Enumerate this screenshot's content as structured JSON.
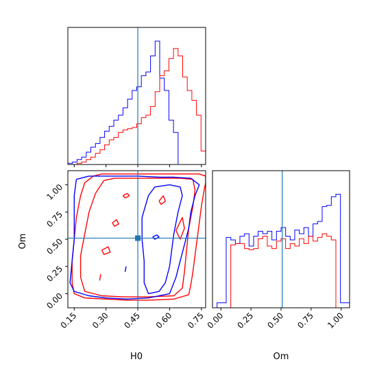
{
  "chart_data": {
    "type": "corner",
    "parameters": [
      "H0",
      "Om"
    ],
    "truth": {
      "H0": 0.45,
      "Om": 0.51
    },
    "colors": {
      "series_a": "#0000ff",
      "series_b": "#ff0000",
      "truth": "#1f77b4"
    },
    "h0_hist": {
      "type": "histogram",
      "xlim": [
        0.12,
        0.77
      ],
      "bin_edges": [
        0.12,
        0.1417,
        0.1633,
        0.185,
        0.2067,
        0.2283,
        0.25,
        0.2717,
        0.2933,
        0.315,
        0.3367,
        0.3583,
        0.38,
        0.4017,
        0.4233,
        0.445,
        0.4667,
        0.4883,
        0.51,
        0.5317,
        0.5533,
        0.575,
        0.5967,
        0.6183,
        0.64,
        0.6617,
        0.6833,
        0.705,
        0.7267,
        0.7483,
        0.77
      ],
      "series": [
        {
          "color_key": "series_a",
          "counts": [
            0.01,
            0.02,
            0.04,
            0.06,
            0.1,
            0.14,
            0.17,
            0.22,
            0.27,
            0.31,
            0.36,
            0.4,
            0.46,
            0.53,
            0.6,
            0.63,
            0.72,
            0.75,
            0.88,
            1.0,
            0.7,
            0.6,
            0.36,
            0.26,
            0,
            0,
            0,
            0,
            0,
            0
          ]
        },
        {
          "color_key": "series_b",
          "counts": [
            0,
            0,
            0.01,
            0.02,
            0.04,
            0.06,
            0.09,
            0.12,
            0.16,
            0.2,
            0.22,
            0.26,
            0.28,
            0.29,
            0.3,
            0.33,
            0.38,
            0.4,
            0.47,
            0.59,
            0.72,
            0.76,
            0.86,
            0.94,
            0.88,
            0.71,
            0.6,
            0.52,
            0.4,
            0.11
          ]
        }
      ]
    },
    "om_hist": {
      "type": "histogram",
      "xlim": [
        -0.07,
        1.07
      ],
      "bin_edges": [
        -0.07,
        -0.032,
        0.006,
        0.044,
        0.082,
        0.12,
        0.158,
        0.196,
        0.234,
        0.272,
        0.31,
        0.348,
        0.386,
        0.424,
        0.462,
        0.5,
        0.538,
        0.576,
        0.614,
        0.652,
        0.69,
        0.728,
        0.766,
        0.804,
        0.842,
        0.88,
        0.918,
        0.956,
        0.994,
        1.032,
        1.07
      ],
      "series": [
        {
          "color_key": "series_a",
          "counts": [
            0,
            0.04,
            0.04,
            0.57,
            0.55,
            0.52,
            0.58,
            0.6,
            0.5,
            0.58,
            0.62,
            0.6,
            0.62,
            0.55,
            0.62,
            0.65,
            0.58,
            0.55,
            0.63,
            0.6,
            0.65,
            0.58,
            0.68,
            0.7,
            0.82,
            0.83,
            0.9,
            0.92,
            0.04,
            0.04
          ]
        },
        {
          "color_key": "series_b",
          "counts": [
            0,
            0,
            0,
            0,
            0.51,
            0.52,
            0.52,
            0.48,
            0.47,
            0.48,
            0.56,
            0.58,
            0.5,
            0.48,
            0.54,
            0.56,
            0.48,
            0.52,
            0.5,
            0.56,
            0.52,
            0.58,
            0.54,
            0.57,
            0.6,
            0.58,
            0.55,
            0.0,
            0,
            0
          ]
        }
      ]
    },
    "contour": {
      "type": "contour",
      "xlim": [
        0.12,
        0.77
      ],
      "ylim": [
        -0.13,
        1.13
      ],
      "series": [
        {
          "color_key": "series_b",
          "paths": [
            [
              [
                0.24,
                1.08
              ],
              [
                0.28,
                1.1
              ],
              [
                0.36,
                1.1
              ],
              [
                0.45,
                1.1
              ],
              [
                0.55,
                1.1
              ],
              [
                0.65,
                1.1
              ],
              [
                0.74,
                1.1
              ],
              [
                0.77,
                1.08
              ],
              [
                0.77,
                1.02
              ],
              [
                0.76,
                0.92
              ],
              [
                0.75,
                0.8
              ],
              [
                0.74,
                0.65
              ],
              [
                0.73,
                0.5
              ],
              [
                0.72,
                0.35
              ],
              [
                0.71,
                0.2
              ],
              [
                0.7,
                0.08
              ],
              [
                0.69,
                -0.01
              ],
              [
                0.62,
                -0.05
              ],
              [
                0.5,
                -0.06
              ],
              [
                0.4,
                -0.06
              ],
              [
                0.3,
                -0.05
              ],
              [
                0.2,
                -0.04
              ],
              [
                0.15,
                0.0
              ],
              [
                0.14,
                0.1
              ],
              [
                0.14,
                0.3
              ],
              [
                0.15,
                0.5
              ],
              [
                0.16,
                0.7
              ],
              [
                0.18,
                0.9
              ],
              [
                0.2,
                1.02
              ],
              [
                0.24,
                1.08
              ]
            ],
            [
              [
                0.29,
                1.04
              ],
              [
                0.34,
                1.06
              ],
              [
                0.45,
                1.06
              ],
              [
                0.55,
                1.06
              ],
              [
                0.65,
                1.06
              ],
              [
                0.71,
                1.05
              ],
              [
                0.72,
                0.95
              ],
              [
                0.71,
                0.8
              ],
              [
                0.69,
                0.6
              ],
              [
                0.68,
                0.4
              ],
              [
                0.67,
                0.2
              ],
              [
                0.66,
                0.05
              ],
              [
                0.62,
                -0.02
              ],
              [
                0.5,
                -0.03
              ],
              [
                0.38,
                -0.03
              ],
              [
                0.28,
                -0.02
              ],
              [
                0.2,
                0.02
              ],
              [
                0.18,
                0.15
              ],
              [
                0.18,
                0.35
              ],
              [
                0.2,
                0.55
              ],
              [
                0.22,
                0.75
              ],
              [
                0.25,
                0.92
              ],
              [
                0.29,
                1.04
              ]
            ],
            [
              [
                0.38,
                0.9
              ],
              [
                0.4,
                0.92
              ],
              [
                0.41,
                0.9
              ],
              [
                0.39,
                0.88
              ],
              [
                0.38,
                0.9
              ]
            ],
            [
              [
                0.33,
                0.65
              ],
              [
                0.35,
                0.68
              ],
              [
                0.36,
                0.64
              ],
              [
                0.34,
                0.62
              ],
              [
                0.33,
                0.65
              ]
            ],
            [
              [
                0.28,
                0.4
              ],
              [
                0.31,
                0.43
              ],
              [
                0.32,
                0.38
              ],
              [
                0.29,
                0.36
              ],
              [
                0.28,
                0.4
              ]
            ],
            [
              [
                0.27,
                0.12
              ],
              [
                0.275,
                0.18
              ]
            ],
            [
              [
                0.63,
                0.58
              ],
              [
                0.66,
                0.7
              ],
              [
                0.67,
                0.6
              ],
              [
                0.65,
                0.5
              ],
              [
                0.63,
                0.58
              ]
            ],
            [
              [
                0.55,
                0.85
              ],
              [
                0.57,
                0.9
              ],
              [
                0.58,
                0.85
              ],
              [
                0.56,
                0.82
              ],
              [
                0.55,
                0.85
              ]
            ]
          ]
        },
        {
          "color_key": "series_a",
          "paths": [
            [
              [
                0.16,
                1.05
              ],
              [
                0.22,
                1.08
              ],
              [
                0.32,
                1.08
              ],
              [
                0.45,
                1.08
              ],
              [
                0.55,
                1.07
              ],
              [
                0.62,
                1.07
              ],
              [
                0.7,
                1.06
              ],
              [
                0.74,
                1.0
              ],
              [
                0.72,
                0.9
              ],
              [
                0.7,
                0.75
              ],
              [
                0.69,
                0.6
              ],
              [
                0.67,
                0.45
              ],
              [
                0.65,
                0.3
              ],
              [
                0.63,
                0.15
              ],
              [
                0.6,
                0.0
              ],
              [
                0.5,
                -0.04
              ],
              [
                0.4,
                -0.05
              ],
              [
                0.3,
                -0.04
              ],
              [
                0.22,
                -0.02
              ],
              [
                0.15,
                0.02
              ],
              [
                0.13,
                0.1
              ],
              [
                0.14,
                0.3
              ],
              [
                0.15,
                0.5
              ],
              [
                0.15,
                0.7
              ],
              [
                0.15,
                0.9
              ],
              [
                0.16,
                1.05
              ]
            ],
            [
              [
                0.53,
                0.98
              ],
              [
                0.6,
                1.0
              ],
              [
                0.65,
                0.98
              ],
              [
                0.66,
                0.9
              ],
              [
                0.64,
                0.75
              ],
              [
                0.62,
                0.55
              ],
              [
                0.61,
                0.4
              ],
              [
                0.6,
                0.25
              ],
              [
                0.58,
                0.1
              ],
              [
                0.55,
                0.02
              ],
              [
                0.5,
                0.0
              ],
              [
                0.48,
                0.1
              ],
              [
                0.48,
                0.3
              ],
              [
                0.47,
                0.5
              ],
              [
                0.47,
                0.7
              ],
              [
                0.5,
                0.9
              ],
              [
                0.53,
                0.98
              ]
            ],
            [
              [
                0.52,
                0.52
              ],
              [
                0.54,
                0.54
              ],
              [
                0.55,
                0.52
              ],
              [
                0.53,
                0.5
              ],
              [
                0.52,
                0.52
              ]
            ],
            [
              [
                0.39,
                0.2
              ],
              [
                0.395,
                0.25
              ]
            ]
          ]
        }
      ]
    },
    "axes": {
      "h0": {
        "label": "H0",
        "ticks": [
          0.15,
          0.3,
          0.45,
          0.6,
          0.75
        ],
        "tick_labels": [
          "0.15",
          "0.30",
          "0.45",
          "0.60",
          "0.75"
        ]
      },
      "om": {
        "label": "Om",
        "ticks": [
          0.0,
          0.25,
          0.5,
          0.75,
          1.0
        ],
        "tick_labels": [
          "0.00",
          "0.25",
          "0.50",
          "0.75",
          "1.00"
        ]
      }
    }
  }
}
